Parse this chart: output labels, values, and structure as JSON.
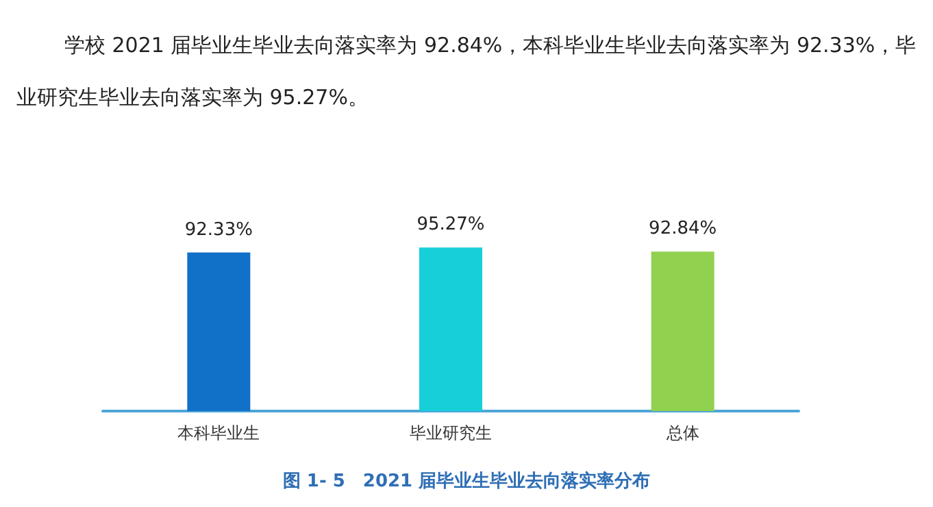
{
  "chart_data": {
    "type": "bar",
    "title": "图 1- 5　2021 届毕业生毕业去向落实率分布",
    "annotations": [
      "学校 2021 届毕业生毕业去向落实率为 92.84%，本科毕业生毕业去向落实率为 92.33%，毕业研究生毕业去向落实率为 95.27%。"
    ],
    "categories": [
      "本科毕业生",
      "毕业研究生",
      "总体"
    ],
    "values": [
      92.33,
      95.27,
      92.84
    ],
    "colors": [
      "#1170c8",
      "#17cfd8",
      "#92d050"
    ],
    "value_labels": [
      "92.33%",
      "95.27%",
      "92.84%"
    ]
  }
}
